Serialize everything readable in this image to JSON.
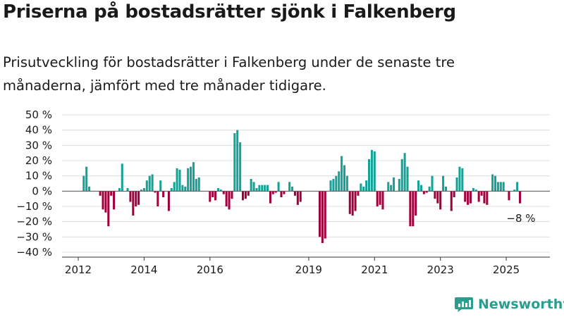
{
  "title": "Priserna på bostadsrätter sjönk i Falkenberg",
  "subtitle": "Prisutveckling för bostadsrätter i Falkenberg under de senaste tre månaderna, jämfört med tre månader tidigare.",
  "brand": {
    "name": "Newsworthy",
    "color": "#2a9d8f"
  },
  "chart_data": {
    "type": "bar",
    "start_month": "2012-03",
    "unit": "%",
    "ylim": [
      -40,
      50
    ],
    "yticks": [
      50,
      40,
      30,
      20,
      10,
      0,
      -10,
      -20,
      -30,
      -40
    ],
    "ytick_labels": [
      "50 %",
      "40 %",
      "30 %",
      "20 %",
      "10 %",
      "0 %",
      "−10 %",
      "−20 %",
      "−30 %",
      "−40 %"
    ],
    "xticks": [
      "2012",
      "2014",
      "2016",
      "2019",
      "2021",
      "2023",
      "2025"
    ],
    "grid": true,
    "colors": {
      "positive": "#16a196",
      "negative": "#a0003c"
    },
    "last_label": "−8 %",
    "values": [
      10,
      16,
      3,
      0,
      0,
      0,
      -3,
      -12,
      -14,
      -23,
      -3,
      -12,
      0,
      2,
      18,
      0,
      2,
      -7,
      -16,
      -10,
      -9,
      1,
      2,
      7,
      10,
      11,
      -1,
      -10,
      7,
      -4,
      0,
      -13,
      2,
      6,
      15,
      14,
      4,
      3,
      15,
      16,
      19,
      8,
      9,
      0,
      0,
      0,
      -7,
      -4,
      -6,
      2,
      1,
      -2,
      -10,
      -12,
      -5,
      38,
      40,
      32,
      -6,
      -5,
      -3,
      8,
      6,
      2,
      4,
      4,
      4,
      4,
      -8,
      -2,
      -1,
      6,
      -4,
      -2,
      0,
      6,
      3,
      -3,
      -9,
      -7,
      0,
      0,
      0,
      0,
      0,
      0,
      -30,
      -34,
      -31,
      0,
      7,
      8,
      10,
      13,
      23,
      17,
      10,
      -15,
      -16,
      -13,
      -3,
      5,
      3,
      7,
      21,
      27,
      26,
      -10,
      -9,
      -12,
      0,
      6,
      4,
      9,
      0,
      8,
      21,
      25,
      16,
      -23,
      -23,
      -16,
      7,
      4,
      -2,
      -1,
      3,
      10,
      -5,
      -8,
      -12,
      10,
      3,
      0,
      -13,
      -4,
      9,
      16,
      15,
      -7,
      -9,
      -8,
      2,
      1,
      -7,
      -3,
      -8,
      -9,
      0,
      11,
      10,
      6,
      6,
      6,
      0,
      -6,
      0,
      1,
      6,
      -8
    ]
  }
}
